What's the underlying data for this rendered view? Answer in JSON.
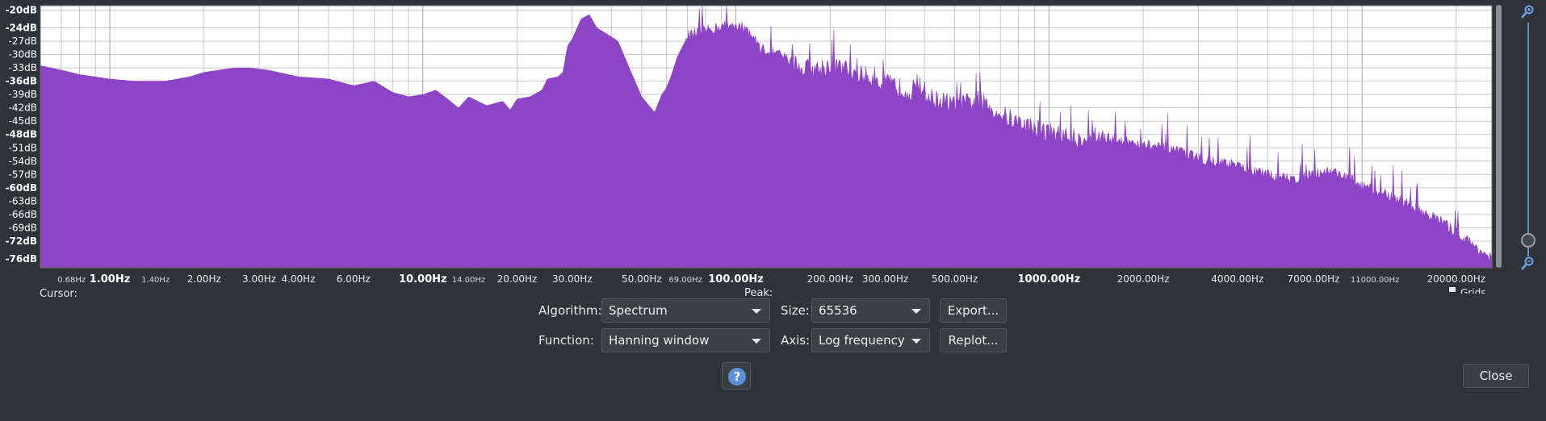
{
  "window": {
    "cursor_label": "Cursor:",
    "peak_label": "Peak:",
    "grid_label": "Grids"
  },
  "controls": {
    "algorithm_label": "Algorithm:",
    "algorithm_value": "Spectrum",
    "size_label": "Size:",
    "size_value": "65536",
    "function_label": "Function:",
    "function_value": "Hanning window",
    "axis_label": "Axis:",
    "axis_value": "Log frequency",
    "export_label": "Export...",
    "replot_label": "Replot...",
    "help_symbol": "?",
    "close_label": "Close"
  },
  "icons": {
    "zoom_in": "zoom-in-icon",
    "zoom_out": "zoom-out-icon",
    "help": "help-icon"
  },
  "colors": {
    "spectrum_fill": "#8e44c6",
    "plot_background": "#ffffff",
    "grid": "#c8c8c8",
    "window_background": "#2f3337"
  },
  "chart_data": {
    "type": "area",
    "title": "",
    "xlabel": "",
    "ylabel": "",
    "x_scale": "log",
    "xlim": [
      0.6,
      26000
    ],
    "ylim": [
      -78,
      -19
    ],
    "grid": true,
    "y_ticks": [
      {
        "label": "-20dB",
        "value": -20,
        "bold": true
      },
      {
        "label": "-24dB",
        "value": -24,
        "bold": true
      },
      {
        "label": "-27dB",
        "value": -27,
        "bold": false
      },
      {
        "label": "-30dB",
        "value": -30,
        "bold": false
      },
      {
        "label": "-33dB",
        "value": -33,
        "bold": false
      },
      {
        "label": "-36dB",
        "value": -36,
        "bold": true
      },
      {
        "label": "-39dB",
        "value": -39,
        "bold": false
      },
      {
        "label": "-42dB",
        "value": -42,
        "bold": false
      },
      {
        "label": "-45dB",
        "value": -45,
        "bold": false
      },
      {
        "label": "-48dB",
        "value": -48,
        "bold": true
      },
      {
        "label": "-51dB",
        "value": -51,
        "bold": false
      },
      {
        "label": "-54dB",
        "value": -54,
        "bold": false
      },
      {
        "label": "-57dB",
        "value": -57,
        "bold": false
      },
      {
        "label": "-60dB",
        "value": -60,
        "bold": true
      },
      {
        "label": "-63dB",
        "value": -63,
        "bold": false
      },
      {
        "label": "-66dB",
        "value": -66,
        "bold": false
      },
      {
        "label": "-69dB",
        "value": -69,
        "bold": false
      },
      {
        "label": "-72dB",
        "value": -72,
        "bold": true
      },
      {
        "label": "-76dB",
        "value": -76,
        "bold": true
      }
    ],
    "x_ticks": [
      {
        "label": "0.68Hz",
        "value": 0.68,
        "style": "small"
      },
      {
        "label": "1.00Hz",
        "value": 1,
        "style": "bold"
      },
      {
        "label": "1.40Hz",
        "value": 1.4,
        "style": "small"
      },
      {
        "label": "2.00Hz",
        "value": 2,
        "style": "normal"
      },
      {
        "label": "3.00Hz",
        "value": 3,
        "style": "normal"
      },
      {
        "label": "4.00Hz",
        "value": 4,
        "style": "normal"
      },
      {
        "label": "6.00Hz",
        "value": 6,
        "style": "normal"
      },
      {
        "label": "10.00Hz",
        "value": 10,
        "style": "bold"
      },
      {
        "label": "14.00Hz",
        "value": 14,
        "style": "small"
      },
      {
        "label": "20.00Hz",
        "value": 20,
        "style": "normal"
      },
      {
        "label": "30.00Hz",
        "value": 30,
        "style": "normal"
      },
      {
        "label": "50.00Hz",
        "value": 50,
        "style": "normal"
      },
      {
        "label": "69.00Hz",
        "value": 69,
        "style": "small"
      },
      {
        "label": "100.00Hz",
        "value": 100,
        "style": "bold"
      },
      {
        "label": "200.00Hz",
        "value": 200,
        "style": "normal"
      },
      {
        "label": "300.00Hz",
        "value": 300,
        "style": "normal"
      },
      {
        "label": "500.00Hz",
        "value": 500,
        "style": "normal"
      },
      {
        "label": "1000.00Hz",
        "value": 1000,
        "style": "bold"
      },
      {
        "label": "2000.00Hz",
        "value": 2000,
        "style": "normal"
      },
      {
        "label": "4000.00Hz",
        "value": 4000,
        "style": "normal"
      },
      {
        "label": "7000.00Hz",
        "value": 7000,
        "style": "normal"
      },
      {
        "label": "11000.00Hz",
        "value": 11000,
        "style": "small"
      },
      {
        "label": "20000.00Hz",
        "value": 20000,
        "style": "normal"
      }
    ],
    "series": [
      {
        "x": [
          0.6,
          0.7,
          0.8,
          1.0,
          1.2,
          1.5,
          1.8,
          2.0,
          2.5,
          2.8,
          3.2,
          4.0,
          5.0,
          6.0,
          7.0,
          8.0,
          9.0,
          10.0,
          11.0,
          12.0,
          13.0,
          14.0,
          16.0,
          18.0,
          19.0,
          20.0,
          22.0,
          24.0,
          25.0,
          27.0,
          28.0,
          29.0,
          30.0,
          32.0,
          34.0,
          36.0,
          40.0,
          42.0,
          45.0,
          50.0,
          55.0,
          58.0,
          60.0,
          62.0,
          65.0,
          70.0,
          80.0,
          90.0,
          100.0,
          110.0,
          120.0,
          140.0,
          160.0,
          180.0,
          200.0,
          250.0,
          300.0,
          400.0,
          500.0,
          600.0,
          700.0,
          800.0,
          1000.0,
          1200.0,
          1500.0,
          2000.0,
          2500.0,
          3000.0,
          4000.0,
          5000.0,
          6000.0,
          7000.0,
          8000.0,
          9000.0,
          10000.0,
          12000.0,
          14000.0,
          16000.0,
          18000.0,
          20000.0,
          22000.0,
          24000.0,
          26000.0
        ],
        "y": [
          -32.5,
          -33.5,
          -34.5,
          -35.5,
          -36.0,
          -36.0,
          -35.0,
          -34.0,
          -33.0,
          -33.0,
          -33.5,
          -35.0,
          -35.5,
          -37.0,
          -36.0,
          -38.5,
          -39.5,
          -39.0,
          -38.0,
          -40.0,
          -42.0,
          -39.5,
          -41.5,
          -40.5,
          -42.5,
          -40.0,
          -39.5,
          -38.0,
          -35.5,
          -35.0,
          -34.0,
          -28.0,
          -26.5,
          -22.0,
          -21.0,
          -24.0,
          -26.0,
          -27.0,
          -32.0,
          -39.5,
          -43.0,
          -39.0,
          -37.5,
          -35.0,
          -30.5,
          -26.0,
          -25.0,
          -24.0,
          -23.5,
          -25.0,
          -29.0,
          -30.5,
          -33.5,
          -34.0,
          -33.0,
          -35.0,
          -37.0,
          -40.0,
          -42.0,
          -41.0,
          -44.0,
          -46.0,
          -48.0,
          -49.5,
          -49.0,
          -50.5,
          -52.0,
          -53.5,
          -55.5,
          -57.5,
          -58.5,
          -57.0,
          -56.5,
          -58.0,
          -60.0,
          -62.0,
          -64.0,
          -66.0,
          -68.0,
          -70.5,
          -72.5,
          -74.5,
          -76.5
        ]
      }
    ]
  }
}
